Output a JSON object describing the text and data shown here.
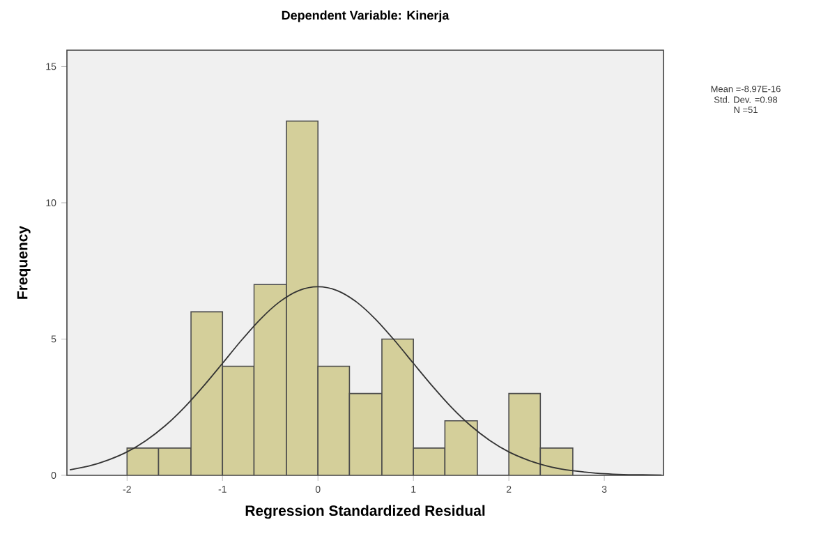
{
  "chart_data": {
    "type": "histogram",
    "title": "Dependent Variable: Kinerja",
    "xlabel": "Regression Standardized Residual",
    "ylabel": "Frequency",
    "bins": [
      -2,
      -1.67,
      -1.33,
      -1,
      -0.67,
      -0.33,
      0,
      0.33,
      0.67,
      1,
      1.33,
      1.67,
      2,
      2.33,
      2.67
    ],
    "values": [
      1,
      1,
      6,
      4,
      7,
      13,
      4,
      3,
      5,
      1,
      2,
      0,
      3,
      1
    ],
    "color": "#d4cf9a",
    "series": [
      {
        "type": "line",
        "color": "#333333",
        "x": [
          -2.6,
          -2.4,
          -2.2,
          -2.0,
          -1.8,
          -1.6,
          -1.4,
          -1.2,
          -1.0,
          -0.8,
          -0.6,
          -0.4,
          -0.2,
          0,
          0.2,
          0.4,
          0.6,
          0.8,
          1.0,
          1.2,
          1.4,
          1.6,
          1.8,
          2.0,
          2.2,
          2.4,
          2.6,
          2.8,
          3.0,
          3.2,
          3.4,
          3.6
        ],
        "values": [
          0.2,
          0.34,
          0.56,
          0.86,
          1.28,
          1.82,
          2.49,
          3.27,
          4.11,
          4.96,
          5.74,
          6.37,
          6.78,
          6.92,
          6.78,
          6.37,
          5.74,
          4.96,
          4.11,
          3.27,
          2.49,
          1.82,
          1.28,
          0.86,
          0.56,
          0.34,
          0.2,
          0.12,
          0.06,
          0.03,
          0.02,
          0.01
        ]
      }
    ],
    "xlim": [
      -2.63,
      3.62
    ],
    "ylim": [
      0,
      15.6
    ],
    "xticks": [
      -2,
      -1,
      0,
      1,
      2,
      3
    ],
    "yticks": [
      0,
      5,
      10,
      15
    ],
    "annotations": [
      "Mean =-8.97E-16",
      "Std. Dev. =0.98",
      "N =51"
    ]
  }
}
